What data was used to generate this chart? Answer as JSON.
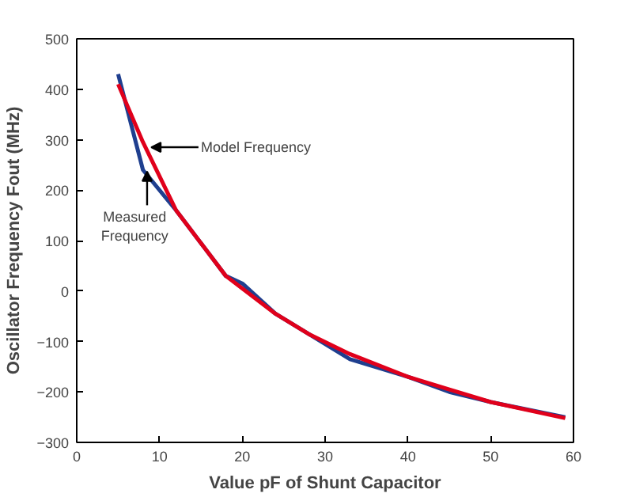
{
  "chart_data": {
    "type": "line",
    "xlabel": "Value pF of Shunt Capacitor",
    "ylabel": "Oscillator Frequency Fout (MHz)",
    "xlim": [
      0,
      60
    ],
    "xticks": [
      0,
      10,
      20,
      30,
      40,
      50,
      60
    ],
    "ylim": [
      -300,
      500
    ],
    "yticks": [
      -300,
      -200,
      -100,
      0,
      100,
      200,
      300,
      400,
      500
    ],
    "series": [
      {
        "color": "#1f3f8f",
        "x": [
          5,
          8,
          12,
          18,
          20,
          24,
          28,
          33,
          40,
          45,
          50,
          59
        ],
        "values": [
          430,
          240,
          160,
          30,
          15,
          -45,
          -85,
          -135,
          -170,
          -200,
          -220,
          -250
        ]
      },
      {
        "color": "#e0001b",
        "x": [
          5,
          8,
          12,
          18,
          20,
          24,
          28,
          33,
          40,
          45,
          50,
          59
        ],
        "values": [
          410,
          295,
          160,
          30,
          5,
          -45,
          -85,
          -125,
          -170,
          -195,
          -220,
          -252
        ]
      }
    ],
    "annotations": [
      {
        "text": "Model Frequency",
        "x": 9,
        "y": 285
      },
      {
        "text": "Measured\nFrequency",
        "x": 8.5,
        "y": 245
      }
    ]
  }
}
